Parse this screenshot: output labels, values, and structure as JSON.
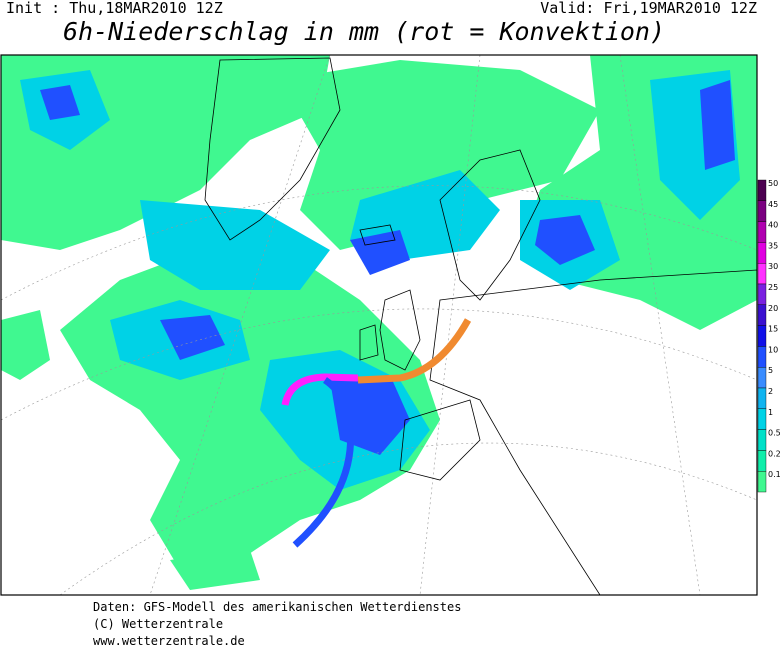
{
  "header": {
    "init": "Init : Thu,18MAR2010 12Z",
    "valid": "Valid: Fri,19MAR2010 12Z",
    "title": "6h-Niederschlag in mm (rot = Konvektion)"
  },
  "legend": [
    {
      "label": "50",
      "color": "#4b0050"
    },
    {
      "label": "45",
      "color": "#7a0080"
    },
    {
      "label": "40",
      "color": "#b000b0"
    },
    {
      "label": "35",
      "color": "#e000e0"
    },
    {
      "label": "30",
      "color": "#ff30ff"
    },
    {
      "label": "25",
      "color": "#7a20e0"
    },
    {
      "label": "20",
      "color": "#3a10d0"
    },
    {
      "label": "15",
      "color": "#1010e8"
    },
    {
      "label": "10",
      "color": "#2050ff"
    },
    {
      "label": "5",
      "color": "#3a8cff"
    },
    {
      "label": "2",
      "color": "#10b4f0"
    },
    {
      "label": "1",
      "color": "#00d2e6"
    },
    {
      "label": "0.5",
      "color": "#00e0c8"
    },
    {
      "label": "0.2",
      "color": "#10eeaa"
    },
    {
      "label": "0.1",
      "color": "#40f890"
    }
  ],
  "footer": {
    "source": "Daten: GFS-Modell des amerikanischen Wetterdienstes",
    "copyright": "(C) Wetterzentrale",
    "url": "www.wetterzentrale.de"
  }
}
